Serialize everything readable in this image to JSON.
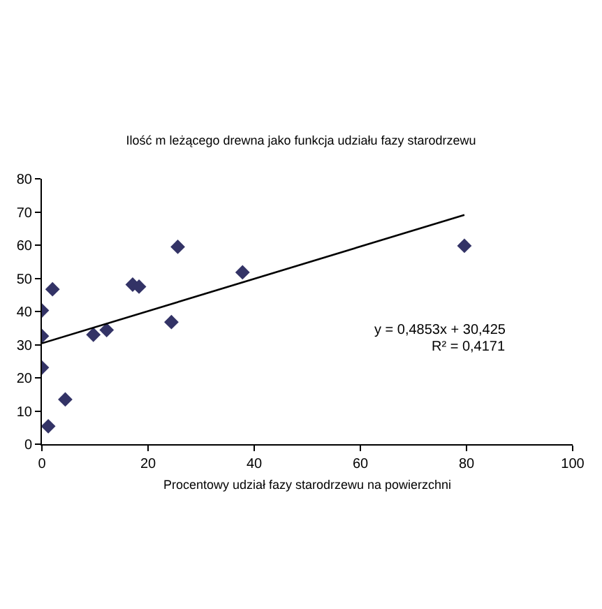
{
  "chart_data": {
    "type": "scatter",
    "title": "Ilość m leżącego drewna jako funkcja udziału fazy starodrzewu",
    "xlabel": "Procentowy udział fazy starodrzewu na powierzchni",
    "xlim": [
      0,
      100
    ],
    "xticks": [
      0,
      20,
      40,
      60,
      80,
      100
    ],
    "ylim": [
      0,
      80
    ],
    "yticks": [
      0,
      10,
      20,
      30,
      40,
      50,
      60,
      70,
      80
    ],
    "grid": false,
    "marker": "diamond",
    "series": [
      {
        "color": "#333366",
        "x": [
          0,
          0,
          0,
          1.2,
          2.0,
          4.4,
          9.7,
          12.2,
          17.1,
          18.3,
          24.4,
          25.6,
          37.8,
          79.6
        ],
        "values": [
          40.3,
          32.6,
          23.1,
          5.4,
          46.7,
          13.5,
          33.0,
          34.4,
          48.1,
          47.5,
          36.8,
          59.5,
          51.8,
          59.8
        ]
      },
      {
        "type": "line",
        "color": "#000000",
        "x": [
          0,
          79.6
        ],
        "values": [
          30.4,
          69.1
        ],
        "marker": "none",
        "line_style": "solid"
      }
    ],
    "annotations": [
      "y = 0,4853x + 30,425",
      "R² = 0,4171"
    ]
  }
}
